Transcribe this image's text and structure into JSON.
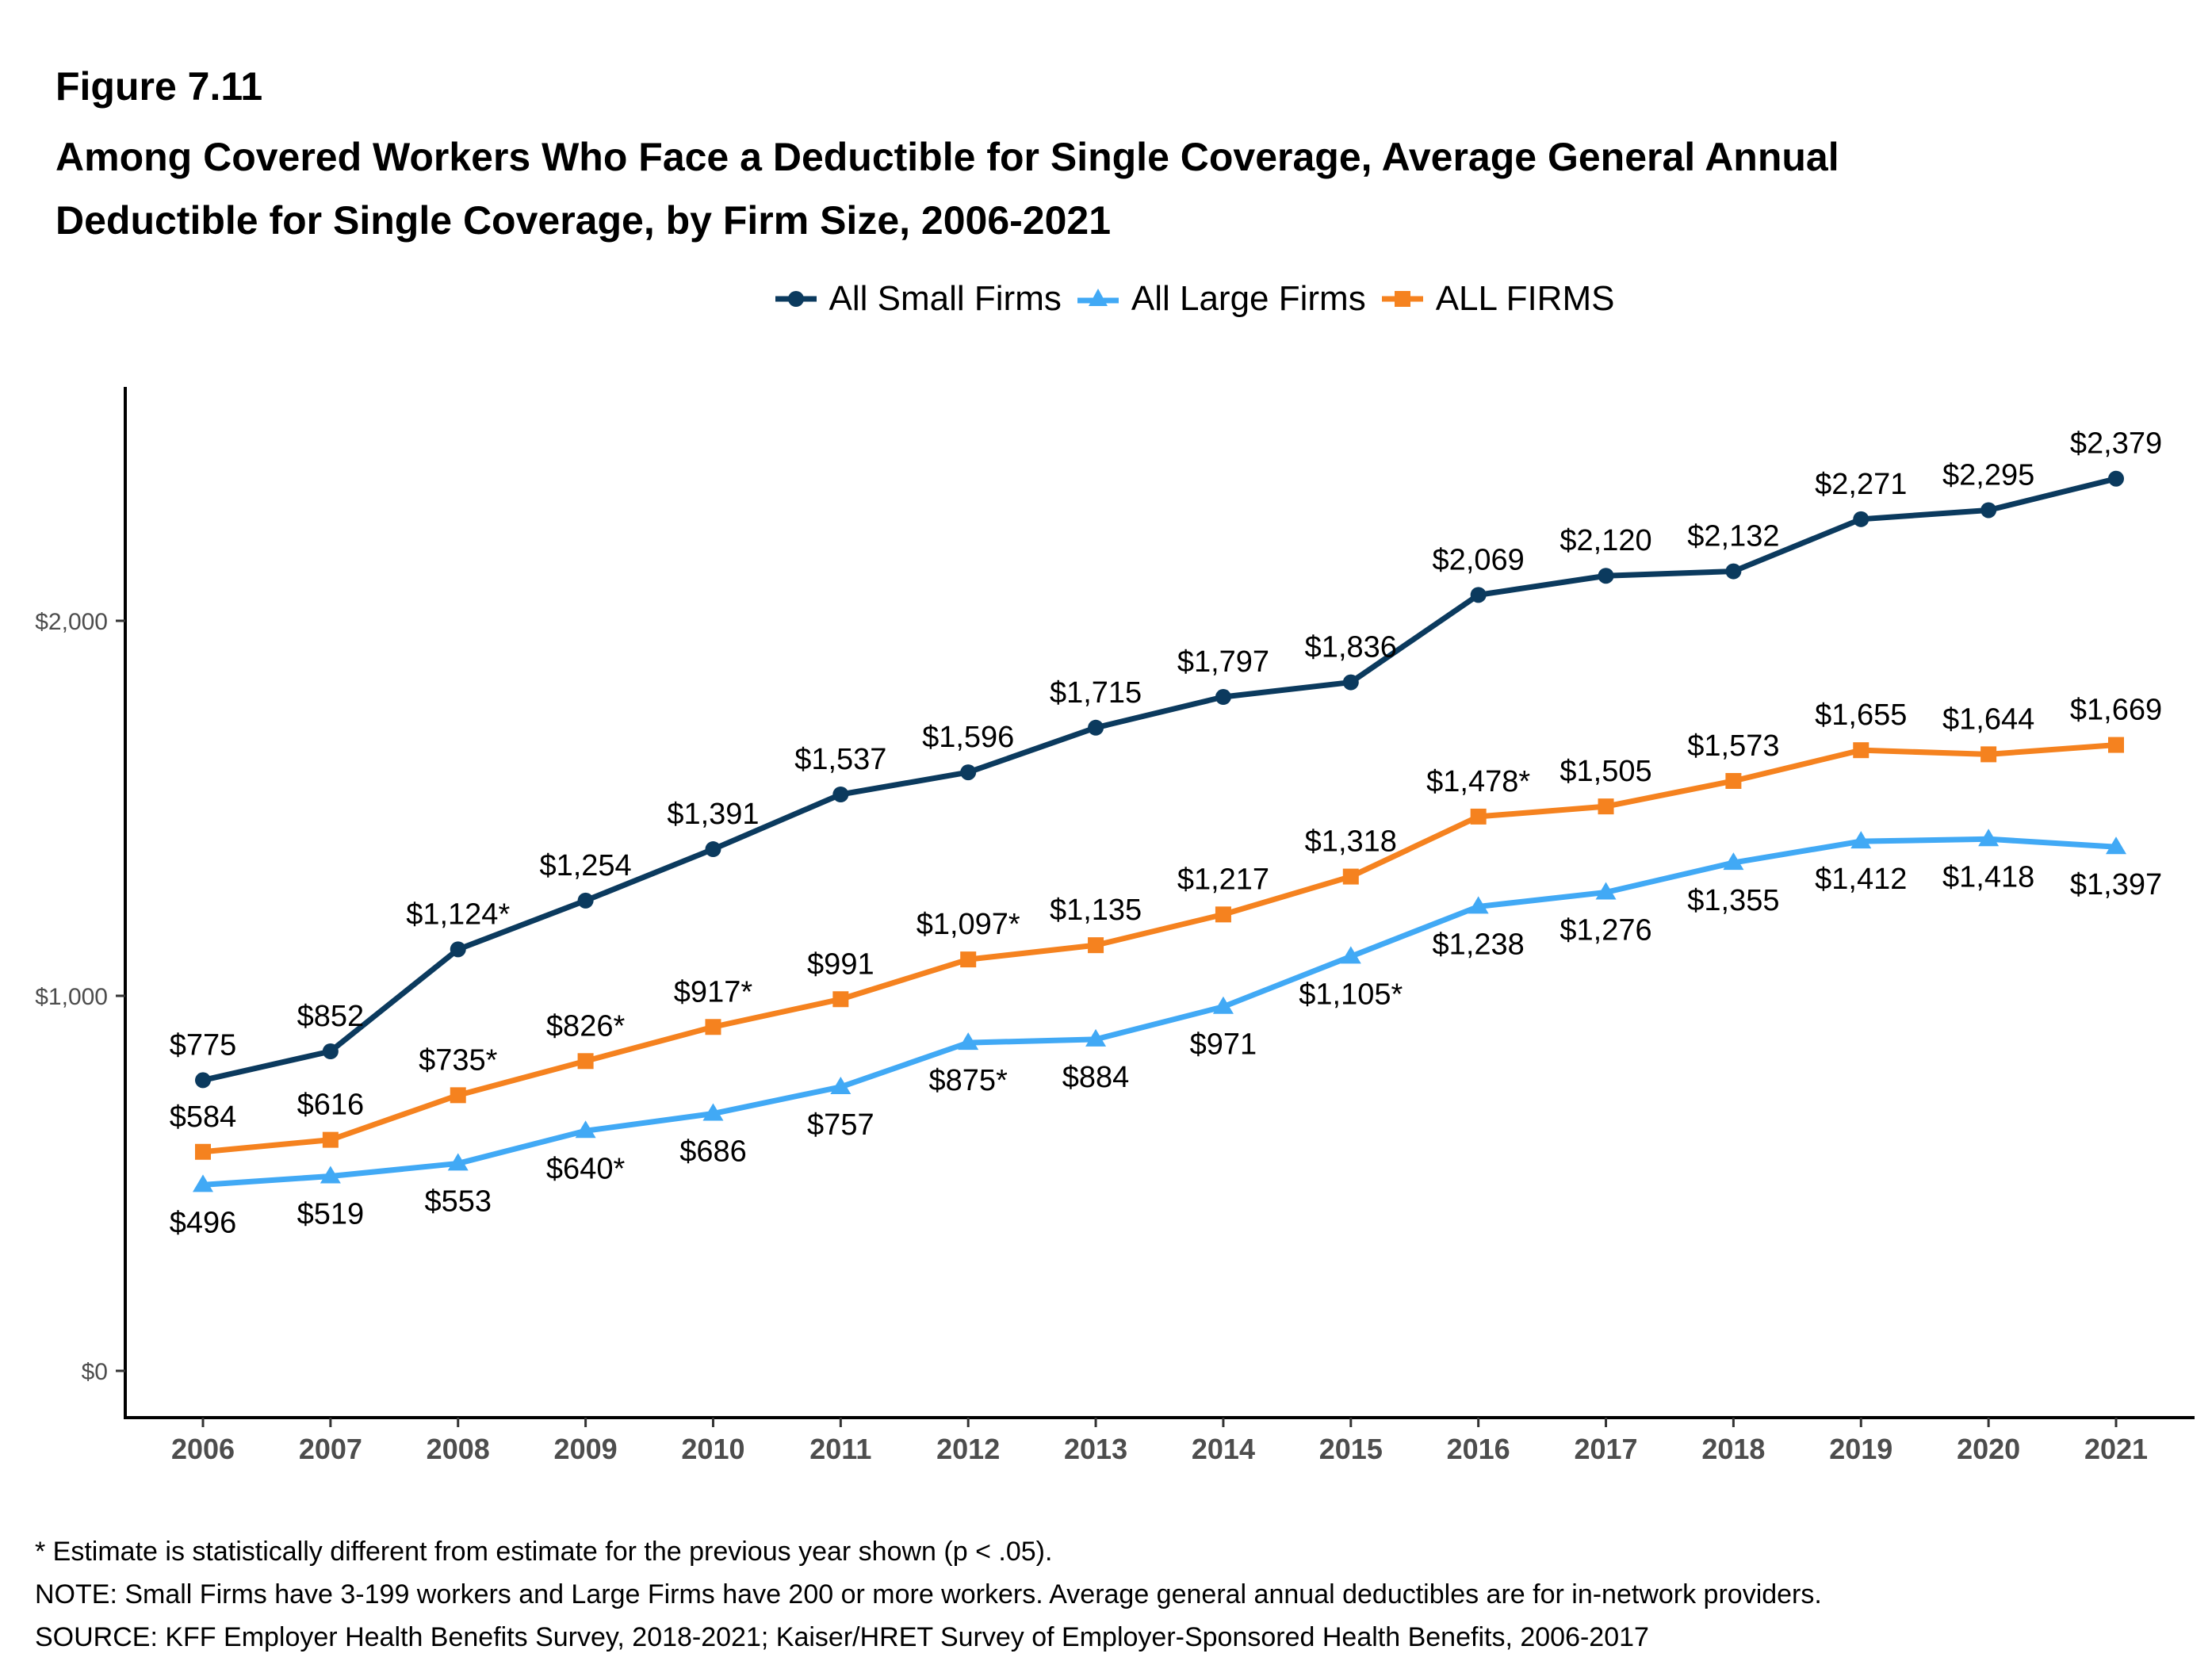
{
  "figure_label": "Figure 7.11",
  "title_line1": "Among Covered Workers Who Face a Deductible for Single Coverage, Average General Annual",
  "title_line2": "Deductible for Single Coverage, by Firm Size, 2006-2021",
  "footnotes": [
    "* Estimate is statistically different from estimate for the previous year shown (p < .05).",
    "NOTE: Small Firms have 3-199 workers and Large Firms have 200 or more workers. Average general annual deductibles are for in-network providers.",
    "SOURCE: KFF Employer Health Benefits Survey, 2018-2021; Kaiser/HRET Survey of Employer-Sponsored Health Benefits, 2006-2017"
  ],
  "chart_data": {
    "type": "line",
    "title": "Among Covered Workers Who Face a Deductible for Single Coverage, Average General Annual Deductible for Single Coverage, by Firm Size, 2006-2021",
    "xlabel": "",
    "ylabel": "",
    "x": [
      "2006",
      "2007",
      "2008",
      "2009",
      "2010",
      "2011",
      "2012",
      "2013",
      "2014",
      "2015",
      "2016",
      "2017",
      "2018",
      "2019",
      "2020",
      "2021"
    ],
    "ylim": [
      0,
      2500
    ],
    "yticks": [
      0,
      1000,
      2000
    ],
    "ytick_labels": [
      "$0",
      "$1,000",
      "$2,000"
    ],
    "grid": false,
    "legend_position": "top",
    "series": [
      {
        "name": "All Small Firms",
        "color": "#0b3a5e",
        "marker": "circle",
        "label_position": "above",
        "values": [
          775,
          852,
          1124,
          1254,
          1391,
          1537,
          1596,
          1715,
          1797,
          1836,
          2069,
          2120,
          2132,
          2271,
          2295,
          2379
        ],
        "labels": [
          "$775",
          "$852",
          "$1,124*",
          "$1,254",
          "$1,391",
          "$1,537",
          "$1,596",
          "$1,715",
          "$1,797",
          "$1,836",
          "$2,069",
          "$2,120",
          "$2,132",
          "$2,271",
          "$2,295",
          "$2,379"
        ]
      },
      {
        "name": "All Large Firms",
        "color": "#41a9f5",
        "marker": "triangle",
        "label_position": "below",
        "values": [
          496,
          519,
          553,
          640,
          686,
          757,
          875,
          884,
          971,
          1105,
          1238,
          1276,
          1355,
          1412,
          1418,
          1397
        ],
        "labels": [
          "$496",
          "$519",
          "$553",
          "$640*",
          "$686",
          "$757",
          "$875*",
          "$884",
          "$971",
          "$1,105*",
          "$1,238",
          "$1,276",
          "$1,355",
          "$1,412",
          "$1,418",
          "$1,397"
        ]
      },
      {
        "name": "ALL FIRMS",
        "color": "#f5821f",
        "marker": "square",
        "label_position": "above",
        "values": [
          584,
          616,
          735,
          826,
          917,
          991,
          1097,
          1135,
          1217,
          1318,
          1478,
          1505,
          1573,
          1655,
          1644,
          1669
        ],
        "labels": [
          "$584",
          "$616",
          "$735*",
          "$826*",
          "$917*",
          "$991",
          "$1,097*",
          "$1,135",
          "$1,217",
          "$1,318",
          "$1,478*",
          "$1,505",
          "$1,573",
          "$1,655",
          "$1,644",
          "$1,669"
        ]
      }
    ]
  }
}
